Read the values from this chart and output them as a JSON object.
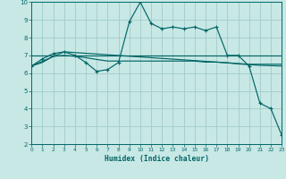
{
  "xlabel": "Humidex (Indice chaleur)",
  "background_color": "#c8e8e5",
  "grid_color": "#a0ccc8",
  "line_color": "#006666",
  "xlim": [
    0,
    23
  ],
  "ylim": [
    2,
    10
  ],
  "xticks": [
    0,
    1,
    2,
    3,
    4,
    5,
    6,
    7,
    8,
    9,
    10,
    11,
    12,
    13,
    14,
    15,
    16,
    17,
    18,
    19,
    20,
    21,
    22,
    23
  ],
  "yticks": [
    2,
    3,
    4,
    5,
    6,
    7,
    8,
    9,
    10
  ],
  "lines": [
    {
      "x": [
        0,
        1,
        2,
        3,
        4,
        5,
        6,
        7,
        8,
        9,
        10,
        11,
        12,
        13,
        14,
        15,
        16,
        17,
        18,
        19,
        20,
        21,
        22,
        23
      ],
      "y": [
        6.4,
        6.8,
        7.1,
        7.2,
        7.0,
        6.6,
        6.1,
        6.2,
        6.6,
        8.9,
        10.0,
        8.8,
        8.5,
        8.6,
        8.5,
        8.6,
        8.4,
        8.6,
        7.0,
        7.0,
        6.4,
        4.3,
        4.0,
        2.5
      ],
      "marker": true
    },
    {
      "x": [
        0,
        3,
        20,
        23
      ],
      "y": [
        6.4,
        7.2,
        6.5,
        6.5
      ],
      "marker": false
    },
    {
      "x": [
        0,
        23
      ],
      "y": [
        7.0,
        7.0
      ],
      "marker": false
    },
    {
      "x": [
        0,
        1,
        2,
        3,
        4,
        5,
        6,
        7,
        8,
        9,
        10,
        11,
        12,
        13,
        14,
        15,
        16,
        17,
        18,
        19,
        20,
        21,
        22,
        23
      ],
      "y": [
        6.4,
        6.6,
        6.95,
        7.0,
        6.95,
        6.87,
        6.77,
        6.68,
        6.68,
        6.68,
        6.68,
        6.68,
        6.68,
        6.68,
        6.68,
        6.68,
        6.62,
        6.62,
        6.58,
        6.52,
        6.48,
        6.44,
        6.42,
        6.4
      ],
      "marker": false
    }
  ]
}
